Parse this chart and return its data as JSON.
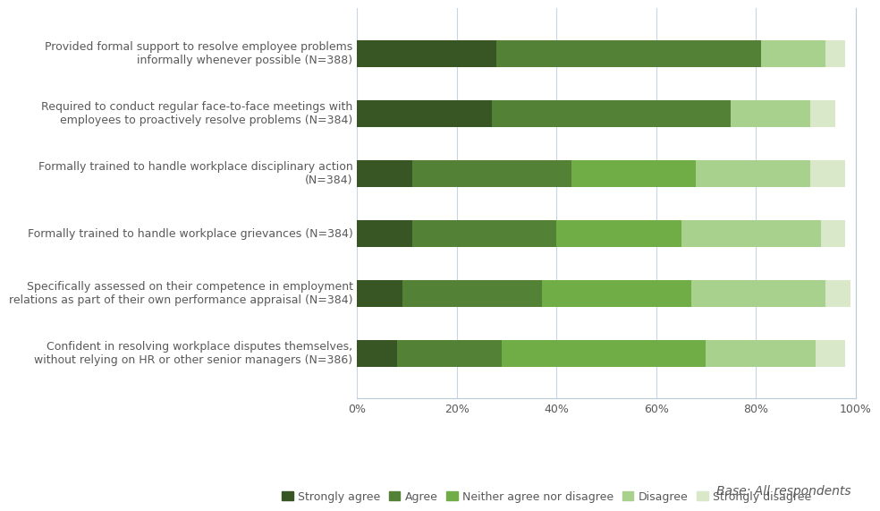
{
  "categories": [
    "Provided formal support to resolve employee problems\ninformally whenever possible (N=388)",
    "Required to conduct regular face-to-face meetings with\nemployees to proactively resolve problems (N=384)",
    "Formally trained to handle workplace disciplinary action\n(N=384)",
    "Formally trained to handle workplace grievances (N=384)",
    "Specifically assessed on their competence in employment\nrelations as part of their own performance appraisal (N=384)",
    "Confident in resolving workplace disputes themselves,\nwithout relying on HR or other senior managers (N=386)"
  ],
  "series": [
    {
      "label": "Strongly agree",
      "color": "#375623",
      "values": [
        28,
        27,
        11,
        11,
        9,
        8
      ]
    },
    {
      "label": "Agree",
      "color": "#538135",
      "values": [
        53,
        48,
        32,
        29,
        28,
        21
      ]
    },
    {
      "label": "Neither agree nor disagree",
      "color": "#70ad47",
      "values": [
        0,
        0,
        25,
        25,
        30,
        41
      ]
    },
    {
      "label": "Disagree",
      "color": "#a9d18e",
      "values": [
        13,
        16,
        23,
        28,
        27,
        22
      ]
    },
    {
      "label": "Strongly disagree",
      "color": "#d9e8c8",
      "values": [
        4,
        5,
        7,
        5,
        5,
        6
      ]
    }
  ],
  "xlim": [
    0,
    100
  ],
  "xtick_labels": [
    "0%",
    "20%",
    "40%",
    "60%",
    "80%",
    "100%"
  ],
  "xtick_values": [
    0,
    20,
    40,
    60,
    80,
    100
  ],
  "background_color": "#ffffff",
  "grid_color": "#c8d4e3",
  "bar_height": 0.45,
  "label_fontsize": 9,
  "tick_fontsize": 9,
  "legend_fontsize": 9,
  "annotation": "Base: All respondents"
}
